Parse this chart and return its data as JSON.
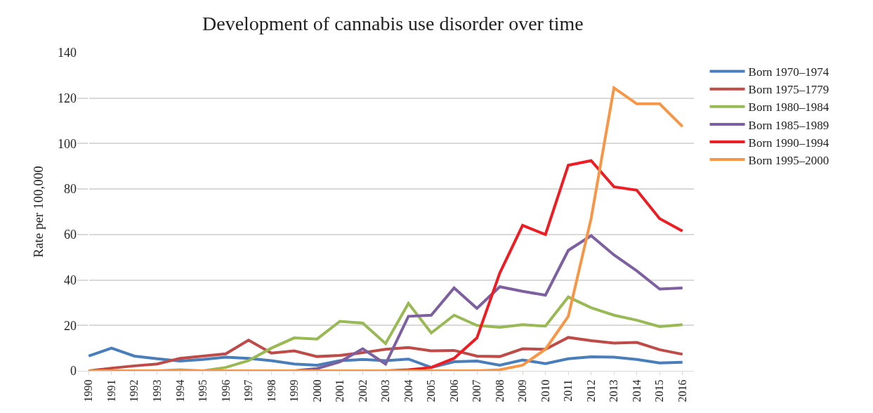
{
  "chart_data": {
    "type": "line",
    "title": "Development of cannabis use disorder over time",
    "ylabel": "Rate per 100,000",
    "categories": [
      "1990",
      "1991",
      "1992",
      "1993",
      "1994",
      "1995",
      "1996",
      "1997",
      "1998",
      "1999",
      "2000",
      "2001",
      "2002",
      "2003",
      "2004",
      "2005",
      "2006",
      "2007",
      "2008",
      "2009",
      "2010",
      "2011",
      "2012",
      "2013",
      "2014",
      "2015",
      "2016"
    ],
    "ylim": [
      0,
      140
    ],
    "yticks": [
      0,
      20,
      40,
      60,
      80,
      100,
      120,
      140
    ],
    "grid": "y",
    "legend": "right",
    "marker": "none",
    "line_style": "solid",
    "series": [
      {
        "name": "Born 1970–1974",
        "color": "#4a7ebb",
        "values": [
          6.5,
          10,
          6.5,
          5.3,
          4.3,
          5,
          6,
          5.5,
          4.5,
          3,
          2.5,
          4.5,
          5,
          4.5,
          5.2,
          1.5,
          4,
          4.3,
          2.5,
          4.8,
          3.2,
          5.3,
          6.2,
          6,
          5,
          3.5,
          3.8
        ]
      },
      {
        "name": "Born 1975–1779",
        "color": "#be4b48",
        "values": [
          0,
          1.2,
          2.2,
          3,
          5.5,
          6.5,
          7.5,
          13.5,
          7.8,
          8.8,
          6.3,
          6.8,
          8,
          9.5,
          10.3,
          8.8,
          9,
          6.5,
          6.3,
          9.7,
          9.5,
          14.7,
          13.3,
          12.2,
          12.5,
          9.3,
          7.3
        ]
      },
      {
        "name": "Born 1980–1984",
        "color": "#98b954",
        "values": [
          null,
          null,
          0,
          0,
          0.5,
          0,
          1.5,
          4.5,
          10,
          14.5,
          14,
          21.8,
          21,
          12,
          29.7,
          16.7,
          24.5,
          20,
          19.2,
          20.3,
          19.7,
          32.5,
          27.8,
          24.5,
          22.3,
          19.5,
          20.3
        ]
      },
      {
        "name": "Born 1985–1989",
        "color": "#7d60a0",
        "values": [
          null,
          null,
          null,
          null,
          null,
          null,
          null,
          null,
          0,
          0,
          1,
          4,
          9.7,
          3,
          24,
          24.5,
          36.5,
          27.5,
          37,
          35,
          33.3,
          53,
          59.5,
          51,
          44,
          36,
          36.5
        ]
      },
      {
        "name": "Born 1990–1994",
        "color": "#ee1d23",
        "values": [
          null,
          null,
          null,
          null,
          null,
          null,
          null,
          null,
          null,
          null,
          null,
          null,
          0,
          0,
          0.5,
          1.5,
          5.5,
          14.5,
          43,
          64,
          60,
          90.5,
          92.5,
          81,
          79.5,
          67,
          61.5
        ]
      },
      {
        "name": "Born 1995–2000",
        "color": "#f79646",
        "values": [
          0,
          0,
          0,
          0,
          0,
          0,
          0,
          0,
          0,
          0,
          0,
          0,
          0,
          0,
          0,
          0,
          0,
          0,
          0.5,
          2.5,
          9.5,
          24,
          67,
          124.5,
          117.5,
          117.5,
          107.5
        ]
      }
    ]
  }
}
